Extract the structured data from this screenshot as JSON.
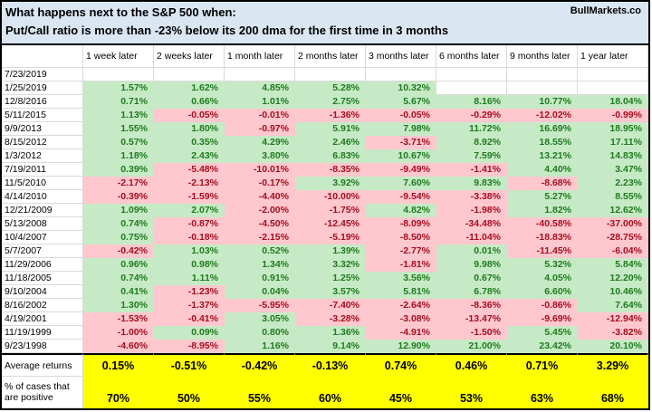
{
  "title_bar": {
    "line1": "What happens next to the S&P 500 when:",
    "line2": "Put/Call ratio is more than -23% below its 200 dma for the first time in 3 months",
    "brand": "BullMarkets.co"
  },
  "chart_data": {
    "type": "table",
    "title": "What happens next to the S&P 500 when: Put/Call ratio is more than -23% below its 200 dma for the first time in 3 months",
    "columns": [
      "1 week later",
      "2 weeks later",
      "1 month later",
      "2 months later",
      "3 months later",
      "6 months later",
      "9 months later",
      "1 year later"
    ],
    "rows": [
      {
        "date": "7/23/2019",
        "values": [
          "",
          "",
          "",
          "",
          "",
          "",
          "",
          ""
        ]
      },
      {
        "date": "1/25/2019",
        "values": [
          "1.57%",
          "1.62%",
          "4.85%",
          "5.28%",
          "10.32%",
          "",
          "",
          ""
        ]
      },
      {
        "date": "12/8/2016",
        "values": [
          "0.71%",
          "0.66%",
          "1.01%",
          "2.75%",
          "5.67%",
          "8.16%",
          "10.77%",
          "18.04%"
        ]
      },
      {
        "date": "5/11/2015",
        "values": [
          "1.13%",
          "-0.05%",
          "-0.01%",
          "-1.36%",
          "-0.05%",
          "-0.29%",
          "-12.02%",
          "-0.99%"
        ]
      },
      {
        "date": "9/9/2013",
        "values": [
          "1.55%",
          "1.80%",
          "-0.97%",
          "5.91%",
          "7.98%",
          "11.72%",
          "16.69%",
          "18.95%"
        ]
      },
      {
        "date": "8/15/2012",
        "values": [
          "0.57%",
          "0.35%",
          "4.29%",
          "2.46%",
          "-3.71%",
          "8.92%",
          "18.55%",
          "17.11%"
        ]
      },
      {
        "date": "1/3/2012",
        "values": [
          "1.18%",
          "2.43%",
          "3.80%",
          "6.83%",
          "10.67%",
          "7.59%",
          "13.21%",
          "14.83%"
        ]
      },
      {
        "date": "7/19/2011",
        "values": [
          "0.39%",
          "-5.48%",
          "-10.01%",
          "-8.35%",
          "-9.49%",
          "-1.41%",
          "4.40%",
          "3.47%"
        ]
      },
      {
        "date": "11/5/2010",
        "values": [
          "-2.17%",
          "-2.13%",
          "-0.17%",
          "3.92%",
          "7.60%",
          "9.83%",
          "-8.68%",
          "2.23%"
        ]
      },
      {
        "date": "4/14/2010",
        "values": [
          "-0.39%",
          "-1.59%",
          "-4.40%",
          "-10.00%",
          "-9.54%",
          "-3.38%",
          "5.27%",
          "8.55%"
        ]
      },
      {
        "date": "12/21/2009",
        "values": [
          "1.09%",
          "2.07%",
          "-2.00%",
          "-1.75%",
          "4.82%",
          "-1.98%",
          "1.82%",
          "12.62%"
        ]
      },
      {
        "date": "5/13/2008",
        "values": [
          "0.74%",
          "-0.87%",
          "-4.50%",
          "-12.45%",
          "-8.09%",
          "-34.48%",
          "-40.58%",
          "-37.00%"
        ]
      },
      {
        "date": "10/4/2007",
        "values": [
          "0.75%",
          "-0.18%",
          "-2.15%",
          "-5.19%",
          "-8.50%",
          "-11.04%",
          "-18.83%",
          "-28.75%"
        ]
      },
      {
        "date": "5/7/2007",
        "values": [
          "-0.42%",
          "1.03%",
          "0.52%",
          "1.39%",
          "-2.77%",
          "0.01%",
          "-11.45%",
          "-6.04%"
        ]
      },
      {
        "date": "11/29/2006",
        "values": [
          "0.96%",
          "0.98%",
          "1.34%",
          "3.32%",
          "-1.81%",
          "9.98%",
          "5.32%",
          "5.84%"
        ]
      },
      {
        "date": "11/18/2005",
        "values": [
          "0.74%",
          "1.11%",
          "0.91%",
          "1.25%",
          "3.56%",
          "0.67%",
          "4.05%",
          "12.20%"
        ]
      },
      {
        "date": "9/10/2004",
        "values": [
          "0.41%",
          "-1.23%",
          "0.04%",
          "3.57%",
          "5.81%",
          "6.78%",
          "6.60%",
          "10.46%"
        ]
      },
      {
        "date": "8/16/2002",
        "values": [
          "1.30%",
          "-1.37%",
          "-5.95%",
          "-7.40%",
          "-2.64%",
          "-8.36%",
          "-0.86%",
          "7.64%"
        ]
      },
      {
        "date": "4/19/2001",
        "values": [
          "-1.53%",
          "-0.41%",
          "3.05%",
          "-3.28%",
          "-3.08%",
          "-13.47%",
          "-9.69%",
          "-12.94%"
        ]
      },
      {
        "date": "11/19/1999",
        "values": [
          "-1.00%",
          "0.09%",
          "0.80%",
          "1.36%",
          "-4.91%",
          "-1.50%",
          "5.45%",
          "-3.82%"
        ]
      },
      {
        "date": "9/23/1998",
        "values": [
          "-4.60%",
          "-8.95%",
          "1.16%",
          "9.14%",
          "12.90%",
          "21.00%",
          "23.42%",
          "20.10%"
        ]
      }
    ],
    "summary": {
      "average_label": "Average returns",
      "average_values": [
        "0.15%",
        "-0.51%",
        "-0.42%",
        "-0.13%",
        "0.74%",
        "0.46%",
        "0.71%",
        "3.29%"
      ],
      "positive_label": "% of cases that are positive",
      "positive_values": [
        "70%",
        "50%",
        "55%",
        "60%",
        "45%",
        "53%",
        "63%",
        "68%"
      ]
    },
    "colors": {
      "title_bg": "#dae6f2",
      "positive_bg": "#c7eac6",
      "positive_text": "#1e7b1e",
      "negative_bg": "#ffc7ce",
      "negative_text": "#a50e1e",
      "summary_bg": "#ffff00",
      "gridline": "#d9d9d9",
      "border": "#000000"
    }
  }
}
